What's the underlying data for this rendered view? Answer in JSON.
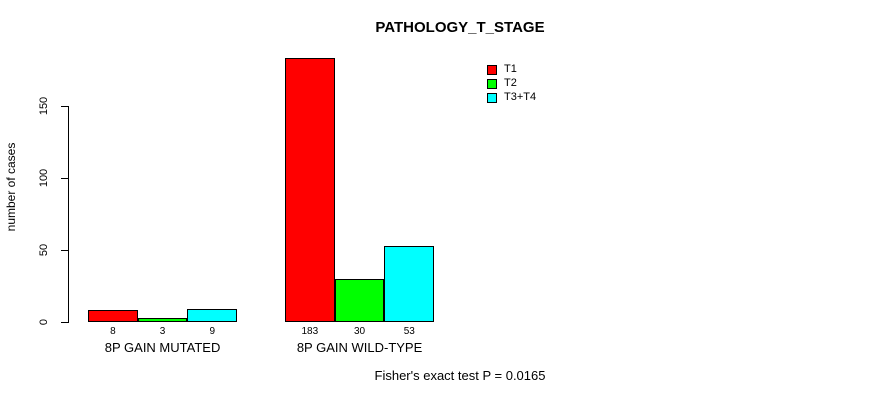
{
  "chart_data": {
    "type": "bar",
    "title": "PATHOLOGY_T_STAGE",
    "ylabel": "number of cases",
    "xlabel": "",
    "categories": [
      "8P GAIN MUTATED",
      "8P GAIN WILD-TYPE"
    ],
    "series": [
      {
        "name": "T1",
        "color": "#FF0000",
        "values": [
          8,
          183
        ]
      },
      {
        "name": "T2",
        "color": "#00FF00",
        "values": [
          3,
          30
        ]
      },
      {
        "name": "T3+T4",
        "color": "#00FFFF",
        "values": [
          9,
          53
        ]
      }
    ],
    "bar_value_labels": [
      [
        8,
        3,
        9
      ],
      [
        183,
        30,
        53
      ]
    ],
    "yticks": [
      0,
      50,
      100,
      150
    ],
    "ylim": [
      0,
      183
    ],
    "grid": false,
    "legend_position": "top-right",
    "legend_entries": [
      "T1",
      "T2",
      "T3+T4"
    ],
    "annotation": "Fisher's exact test P = 0.0165",
    "bar_border_color": "#000000",
    "axis_color": "#000000",
    "background": "#FFFFFF"
  }
}
